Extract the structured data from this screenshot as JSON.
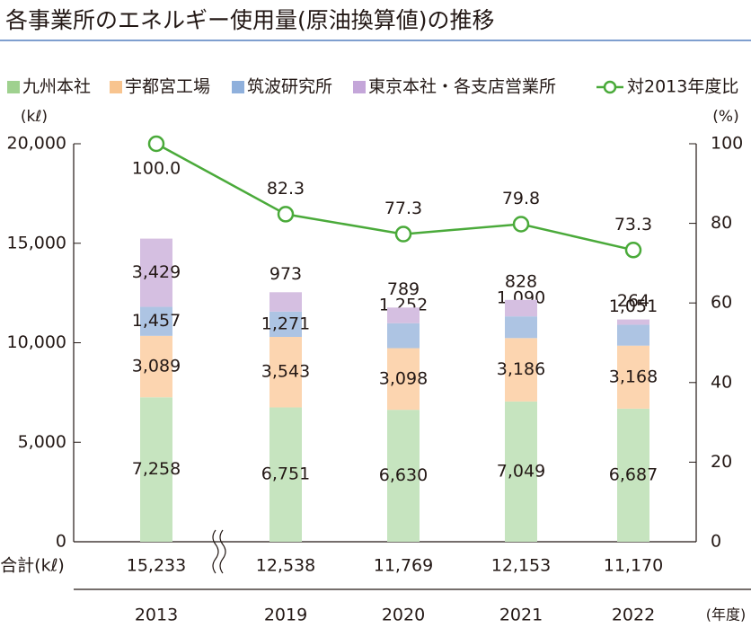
{
  "chart_data": {
    "type": "bar",
    "title": "各事業所のエネルギー使用量(原油換算値)の推移",
    "categories": [
      "2013",
      "2019",
      "2020",
      "2021",
      "2022"
    ],
    "series": [
      {
        "name": "九州本社",
        "color": "#c6e4bf",
        "legend_color": "#9fd18f",
        "values": [
          7258,
          6751,
          6630,
          7049,
          6687
        ],
        "value_labels": [
          "7,258",
          "6,751",
          "6,630",
          "7,049",
          "6,687"
        ]
      },
      {
        "name": "宇都宮工場",
        "color": "#fcd5b0",
        "legend_color": "#f8c48f",
        "values": [
          3089,
          3543,
          3098,
          3186,
          3168
        ],
        "value_labels": [
          "3,089",
          "3,543",
          "3,098",
          "3,186",
          "3,168"
        ]
      },
      {
        "name": "筑波研究所",
        "color": "#adc4e3",
        "legend_color": "#8fb0dc",
        "values": [
          1457,
          1271,
          1252,
          1090,
          1051
        ],
        "value_labels": [
          "1,457",
          "1,271",
          "1,252",
          "1,090",
          "1,051"
        ]
      },
      {
        "name": "東京本社・各支店営業所",
        "color": "#d5bfe1",
        "legend_color": "#c4a6d9",
        "values": [
          3429,
          973,
          789,
          828,
          264
        ],
        "value_labels": [
          "3,429",
          "973",
          "789",
          "828",
          "264"
        ]
      },
      {
        "name": "対2013年度比",
        "type": "line",
        "axis": "y2",
        "color": "#4aaa3a",
        "values": [
          100.0,
          82.3,
          77.3,
          79.8,
          73.3
        ],
        "value_labels": [
          "100.0",
          "82.3",
          "77.3",
          "79.8",
          "73.3"
        ]
      }
    ],
    "totals_label": "合計(kℓ)",
    "totals": [
      15233,
      12538,
      11769,
      12153,
      11170
    ],
    "totals_labels": [
      "15,233",
      "12,538",
      "11,769",
      "12,153",
      "11,170"
    ],
    "y_unit": "(kℓ)",
    "y2_unit": "(%)",
    "x_unit": "(年度)",
    "ylim": [
      0,
      20000
    ],
    "yticks": [
      0,
      {
        "value": 5000,
        "label": "5,000"
      },
      {
        "value": 10000,
        "label": "10,000"
      },
      {
        "value": 15000,
        "label": "15,000"
      },
      {
        "value": 20000,
        "label": "20,000"
      }
    ],
    "y2lim": [
      0,
      100
    ],
    "y2ticks": [
      0,
      20,
      40,
      60,
      80,
      100
    ]
  }
}
